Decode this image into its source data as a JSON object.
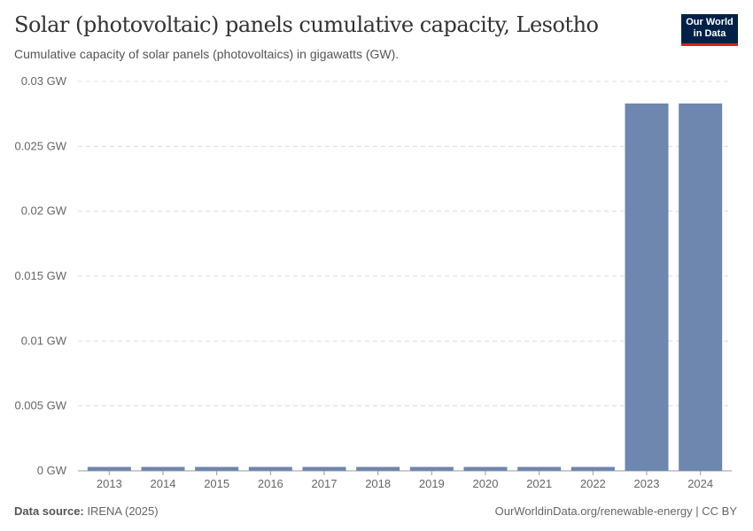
{
  "header": {
    "title": "Solar (photovoltaic) panels cumulative capacity, Lesotho",
    "subtitle": "Cumulative capacity of solar panels (photovoltaics) in gigawatts (GW).",
    "logo": "Our World in Data"
  },
  "footer": {
    "source_label": "Data source:",
    "source": "IRENA (2025)",
    "credit": "OurWorldinData.org/renewable-energy | CC BY"
  },
  "chart_data": {
    "type": "bar",
    "title": "Solar (photovoltaic) panels cumulative capacity, Lesotho",
    "xlabel": "",
    "ylabel": "",
    "categories": [
      "2013",
      "2014",
      "2015",
      "2016",
      "2017",
      "2018",
      "2019",
      "2020",
      "2021",
      "2022",
      "2023",
      "2024"
    ],
    "values": [
      0.0003,
      0.0003,
      0.0003,
      0.0003,
      0.0003,
      0.0003,
      0.0003,
      0.0003,
      0.0003,
      0.0003,
      0.0283,
      0.0283
    ],
    "ylim": [
      0,
      0.03
    ],
    "yticks": [
      "0 GW",
      "0.005 GW",
      "0.01 GW",
      "0.015 GW",
      "0.02 GW",
      "0.025 GW",
      "0.03 GW"
    ],
    "grid": true,
    "color": "#6d87ae"
  }
}
